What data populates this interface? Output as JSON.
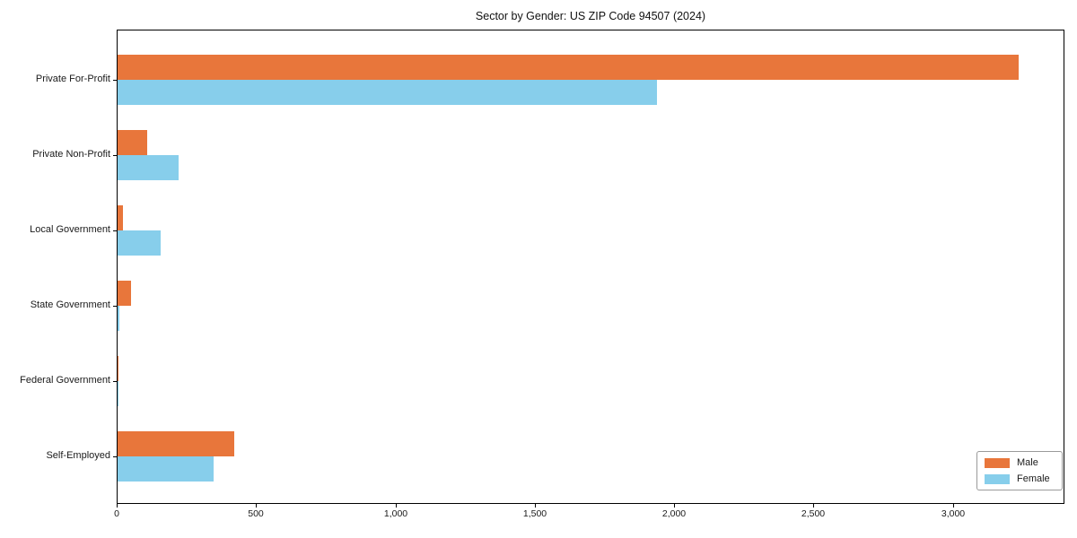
{
  "chart_data": {
    "type": "bar",
    "orientation": "horizontal",
    "title": "Sector by Gender: US ZIP Code 94507 (2024)",
    "categories": [
      "Private For-Profit",
      "Private Non-Profit",
      "Local Government",
      "State Government",
      "Federal Government",
      "Self-Employed"
    ],
    "series": [
      {
        "name": "Male",
        "color": "#e8763b",
        "values": [
          3240,
          105,
          18,
          48,
          3,
          420
        ]
      },
      {
        "name": "Female",
        "color": "#87ceeb",
        "values": [
          1940,
          220,
          155,
          6,
          3,
          345
        ]
      }
    ],
    "xlim": [
      0,
      3400
    ],
    "xticks": [
      0,
      500,
      1000,
      1500,
      2000,
      2500,
      3000
    ],
    "xtick_labels": [
      "0",
      "500",
      "1,000",
      "1,500",
      "2,000",
      "2,500",
      "3,000"
    ],
    "xlabel": "",
    "ylabel": "",
    "grid": false,
    "legend": {
      "position": "lower right",
      "entries": [
        "Male",
        "Female"
      ]
    },
    "colors": {
      "axis": "#000000",
      "text": "#1a1a1a",
      "background": "#ffffff"
    }
  }
}
